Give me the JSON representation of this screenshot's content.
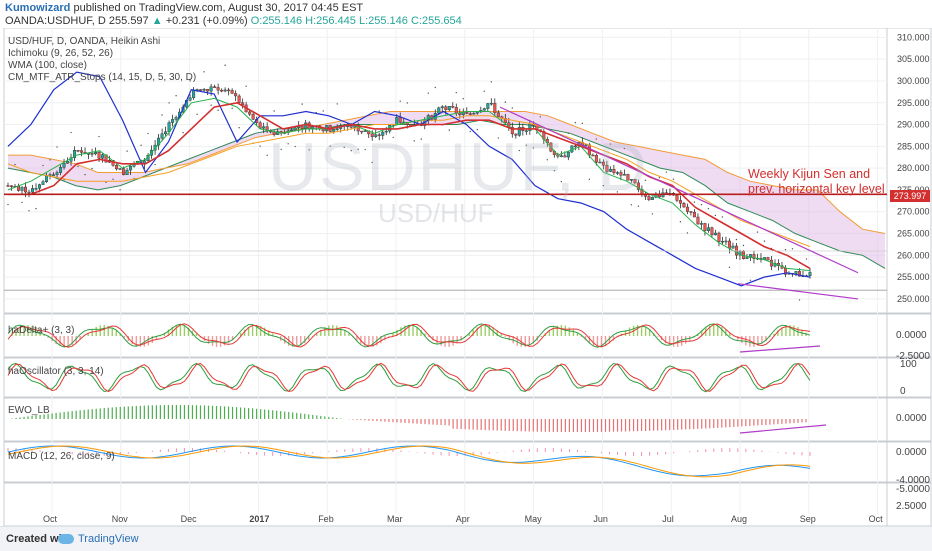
{
  "header": {
    "author": "Kumowizard",
    "published": "published on TradingView.com, August 30, 2017 04:45 EST",
    "symbol": "OANDA:USDHUF, D",
    "last": "255.597",
    "change": "+0.231 (+0.09%)",
    "open": "O:255.146",
    "high": "H:256.445",
    "low": "L:255.146",
    "close": "C:255.654"
  },
  "legend": {
    "line1": "USD/HUF, D, OANDA, Heikin Ashi",
    "line2": "Ichimoku (9, 26, 52, 26)",
    "line3": "WMA (100, close)",
    "line4": "CM_MTF_ATR_Stops (14, 15, D, 5, 30, D)"
  },
  "watermark": {
    "main": "USDHUF, D",
    "sub": "USD/HUF"
  },
  "annotation": {
    "line1": "Weekly Kijun Sen and",
    "line2": "prev. horizontal key level"
  },
  "price_tag": "273.997",
  "panes": {
    "delta": {
      "label": "haDelta+ (3, 3)",
      "ticks": [
        "0.0000",
        "-2.5000"
      ]
    },
    "osc": {
      "label": "haOscillator (3, 3, 14)",
      "ticks": [
        "100",
        "0"
      ]
    },
    "ewo": {
      "label": "EWO_LB",
      "ticks": [
        "0.0000"
      ]
    },
    "macd": {
      "label": "MACD (12, 26, close, 9)",
      "ticks": [
        "0.0000",
        "-4.0000"
      ]
    },
    "bottom": {
      "ticks": [
        "-5.0000",
        "2.5000"
      ]
    }
  },
  "footer": {
    "created": "Created with",
    "brand": "TradingView"
  },
  "colors": {
    "up": "#26a69a",
    "down": "#ef5350",
    "kijun": "#d32f2f",
    "tenkan": "#26b14a",
    "wma": "#f5a020",
    "atr": "#1f2fd0",
    "cloudA": "#2e8b57",
    "cloudB": "#f29c38",
    "cloudFill": "#e1bee7",
    "trend": "#b03cc8",
    "keylevel": "#b71c1c"
  },
  "chart_data": {
    "type": "candlestick",
    "chart_type": "Heikin Ashi",
    "x_labels": [
      "Oct",
      "Nov",
      "Dec",
      "2017",
      "Feb",
      "Mar",
      "Apr",
      "May",
      "Jun",
      "Jul",
      "Aug",
      "Sep",
      "Oct"
    ],
    "y_ticks": [
      310,
      305,
      300,
      295,
      290,
      285,
      280,
      275,
      270,
      265,
      260,
      255,
      250
    ],
    "ylim": [
      247,
      311
    ],
    "key_level": 273.997,
    "series": [
      {
        "name": "USD/HUF, D, OANDA, Heikin Ashi",
        "values": [
          276,
          275,
          279,
          284,
          283,
          279,
          282,
          290,
          297,
          299,
          296,
          289,
          288,
          290,
          289,
          290,
          287,
          291,
          290,
          294,
          292,
          295,
          288,
          290,
          282,
          286,
          280,
          278,
          273,
          274,
          268,
          264,
          260,
          259,
          256,
          255.6
        ]
      },
      {
        "name": "Ichimoku Tenkan",
        "values": [
          275,
          277,
          280,
          283,
          284,
          280,
          282,
          288,
          295,
          296,
          294,
          289,
          288,
          289,
          289,
          290,
          288,
          290,
          291,
          292,
          293,
          293,
          289,
          289,
          283,
          285,
          279,
          277,
          274,
          272,
          267,
          263,
          260,
          259,
          257,
          256.5
        ]
      },
      {
        "name": "Ichimoku Kijun",
        "values": [
          274,
          274,
          276,
          281,
          282,
          281,
          281,
          284,
          289,
          294,
          295,
          292,
          289,
          290,
          289,
          290,
          289,
          289,
          290,
          290,
          291,
          291,
          289,
          289,
          287,
          285,
          283,
          281,
          278,
          276,
          271,
          268,
          265,
          262,
          260,
          257
        ]
      },
      {
        "name": "WMA (100, close)",
        "values": [
          281,
          279,
          278,
          277,
          277,
          277,
          278,
          279,
          281,
          283,
          285,
          286,
          287,
          288,
          288,
          289,
          290,
          290,
          291,
          291,
          292,
          292,
          291,
          290,
          288,
          286,
          284,
          282,
          279,
          277,
          274,
          271,
          268,
          266,
          264,
          262
        ]
      },
      {
        "name": "CM_MTF_ATR_Stops",
        "values": [
          285,
          290,
          298,
          302,
          301,
          291,
          279,
          286,
          298,
          297,
          286,
          292,
          292,
          293,
          292,
          290,
          293,
          292,
          290,
          293,
          290,
          285,
          282,
          276,
          273,
          272,
          270,
          266,
          263,
          260,
          257,
          255,
          253,
          255,
          256,
          255
        ]
      },
      {
        "name": "Ichimoku Senkou A",
        "values": [
          280,
          279,
          278,
          276,
          275,
          276,
          278,
          280,
          282,
          284,
          286,
          288,
          289,
          289,
          289,
          290,
          290,
          290,
          290,
          290,
          290,
          291,
          290,
          290,
          289,
          288,
          286,
          284,
          282,
          280,
          279,
          276,
          272,
          270,
          268,
          265,
          263,
          261,
          260,
          257
        ]
      },
      {
        "name": "Ichimoku Senkou B",
        "values": [
          283,
          283,
          282,
          281,
          279,
          279,
          279,
          280,
          281,
          283,
          285,
          287,
          288,
          289,
          290,
          291,
          292,
          293,
          293,
          293,
          293,
          293,
          293,
          293,
          292,
          290,
          288,
          286,
          285,
          284,
          283,
          282,
          279,
          277,
          276,
          275,
          275,
          270,
          266,
          265
        ]
      }
    ]
  }
}
